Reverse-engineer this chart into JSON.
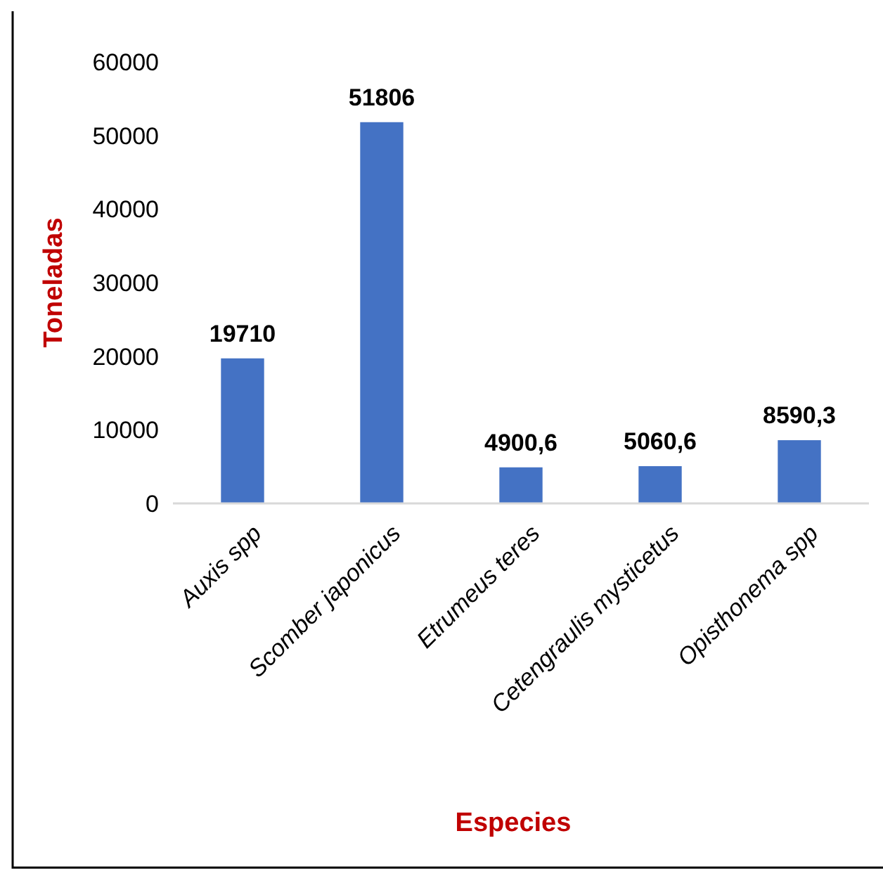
{
  "chart_data": {
    "type": "bar",
    "xlabel": "Especies",
    "ylabel": "Toneladas",
    "categories": [
      "Auxis spp",
      "Scomber japonicus",
      "Etrumeus teres",
      "Cetengraulis mysticetus",
      "Opisthonema spp"
    ],
    "values": [
      19710,
      51806,
      4900.6,
      5060.6,
      8590.3
    ],
    "value_labels": [
      "19710",
      "51806",
      "4900,6",
      "5060,6",
      "8590,3"
    ],
    "color": "#4472c4",
    "ylim": [
      0,
      60000
    ],
    "yticks": [
      0,
      10000,
      20000,
      30000,
      40000,
      50000,
      60000
    ],
    "grid": false
  }
}
